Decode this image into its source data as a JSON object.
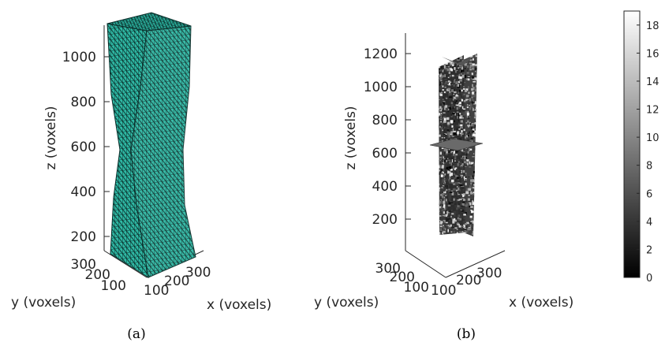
{
  "chart_data": [
    {
      "type": "surface3d",
      "caption": "(a)",
      "xlabel": "x (voxels)",
      "ylabel": "y (voxels)",
      "zlabel": "z (voxels)",
      "xticks": [
        "100",
        "200",
        "300"
      ],
      "yticks": [
        "100",
        "200",
        "300"
      ],
      "zticks": [
        "200",
        "400",
        "600",
        "800",
        "1000"
      ],
      "colors": {
        "mesh_face": "#2fb8a4",
        "mesh_edge": "#0b2f2b",
        "axis": "#262626"
      }
    },
    {
      "type": "heatmap",
      "caption": "(b)",
      "xlabel": "x (voxels)",
      "ylabel": "y (voxels)",
      "zlabel": "z (voxels)",
      "xticks": [
        "100",
        "200",
        "300"
      ],
      "yticks": [
        "100",
        "200",
        "300"
      ],
      "zticks": [
        "200",
        "400",
        "600",
        "800",
        "1000",
        "1200"
      ],
      "colorbar": {
        "range": [
          0,
          19
        ],
        "colormap": "gray",
        "ticks": [
          "0",
          "2",
          "4",
          "6",
          "8",
          "10",
          "12",
          "14",
          "16",
          "18"
        ]
      }
    }
  ]
}
